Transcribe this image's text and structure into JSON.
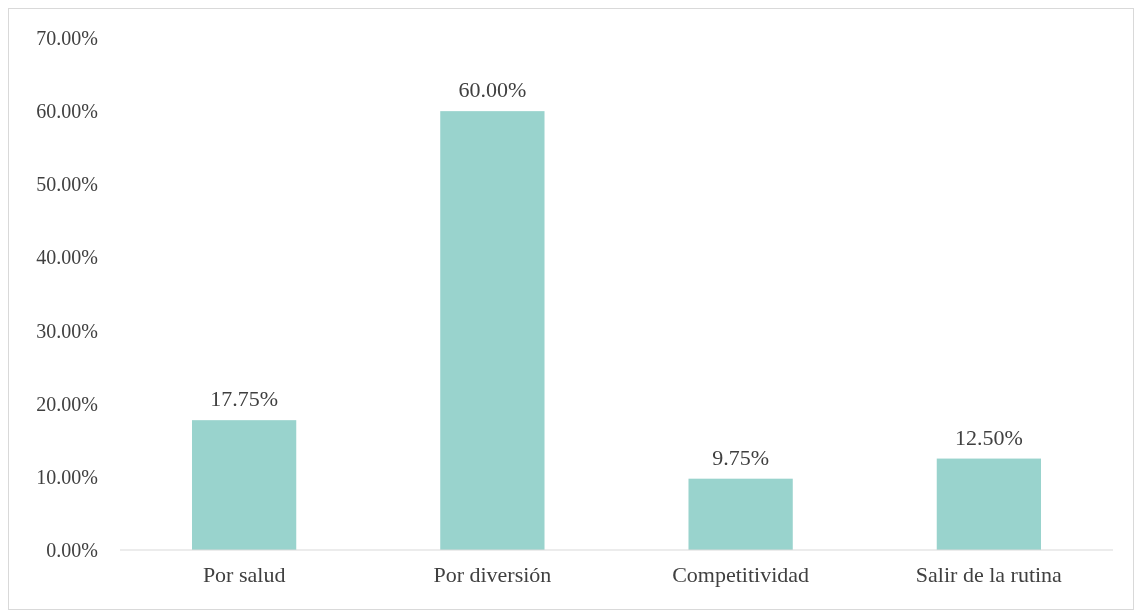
{
  "chart_data": {
    "type": "bar",
    "categories": [
      "Por salud",
      "Por diversión",
      "Competitividad",
      "Salir de la rutina"
    ],
    "values": [
      17.75,
      60,
      9.75,
      12.5
    ],
    "color": "#99d3cd",
    "value_labels": [
      "17.75%",
      "60.00%",
      "9.75%",
      "12.50%"
    ],
    "ylim": [
      0,
      70
    ],
    "yticks": [
      {
        "value": 0,
        "label": "0.00%"
      },
      {
        "value": 10,
        "label": "10.00%"
      },
      {
        "value": 20,
        "label": "20.00%"
      },
      {
        "value": 30,
        "label": "30.00%"
      },
      {
        "value": 40,
        "label": "40.00%"
      },
      {
        "value": 50,
        "label": "50.00%"
      },
      {
        "value": 60,
        "label": "60.00%"
      },
      {
        "value": 70,
        "label": "70.00%"
      }
    ],
    "grid": false
  }
}
